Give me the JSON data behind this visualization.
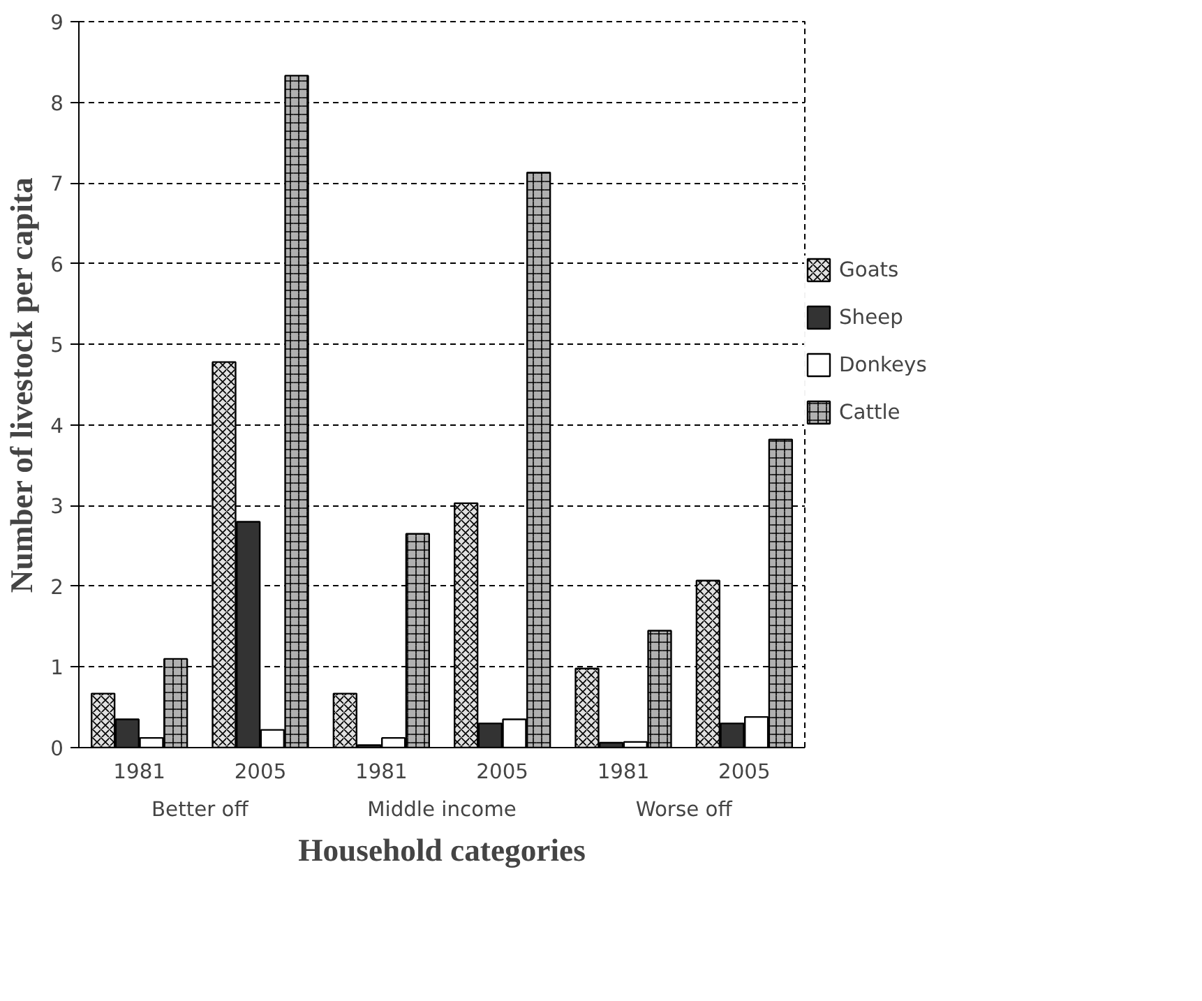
{
  "chart_data": {
    "type": "bar",
    "xlabel": "Household categories",
    "ylabel": "Number of livestock per capita",
    "categories": [
      "1981",
      "2005",
      "1981",
      "2005",
      "1981",
      "2005"
    ],
    "annotations": [
      "Better off",
      "Middle income",
      "Worse off"
    ],
    "series": [
      {
        "name": "Goats",
        "color": "#e0e0e0",
        "values": [
          0.67,
          4.78,
          0.67,
          3.03,
          0.98,
          2.07
        ]
      },
      {
        "name": "Sheep",
        "color": "#333333",
        "values": [
          0.35,
          2.8,
          0.03,
          0.3,
          0.06,
          0.3
        ]
      },
      {
        "name": "Donkeys",
        "color": "#ffffff",
        "values": [
          0.12,
          0.22,
          0.12,
          0.35,
          0.07,
          0.38
        ]
      },
      {
        "name": "Cattle",
        "color": "#b0b0b0",
        "values": [
          1.1,
          8.33,
          2.65,
          7.13,
          1.45,
          3.82
        ]
      }
    ],
    "ylim": [
      0,
      9
    ],
    "yticks": [
      0,
      1,
      2,
      3,
      4,
      5,
      6,
      7,
      8,
      9
    ],
    "grid": "y",
    "legend": "right"
  }
}
